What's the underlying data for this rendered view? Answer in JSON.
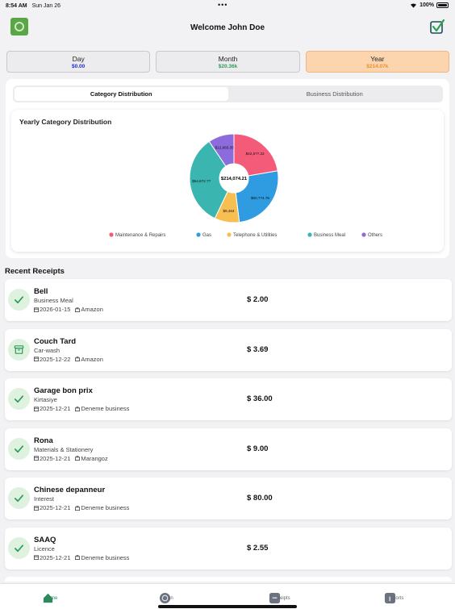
{
  "status": {
    "time": "8:54 AM",
    "date": "Sun Jan 26",
    "dots": "•••",
    "battery": "100%"
  },
  "header": {
    "title": "Welcome John Doe",
    "logo_icon": "app-logo-icon",
    "check_icon": "check-shield-icon"
  },
  "periods": [
    {
      "label": "Day",
      "value": "$0.00",
      "color": "#1c2ecb"
    },
    {
      "label": "Month",
      "value": "$20.36k",
      "color": "#2e9a5a"
    },
    {
      "label": "Year",
      "value": "$214.07k",
      "color": "#e8912d"
    }
  ],
  "active_period": "Year",
  "tabs": {
    "category": "Category Distribution",
    "business": "Business Distribution"
  },
  "chart_data": {
    "type": "pie",
    "title": "Yearly Category Distribution",
    "center_label": "$214,074.21",
    "donut": true,
    "slices": [
      {
        "name": "Maintenance & Repairs",
        "label": "$42,5??.22",
        "value": 52,
        "color": "#f45b78"
      },
      {
        "name": "Gas",
        "label": "$60,??4.76",
        "value": 60,
        "color": "#2f9be0"
      },
      {
        "name": "Telephone & Utilities",
        "label": "$9,464",
        "value": 21,
        "color": "#f7bf51"
      },
      {
        "name": "Business Meal",
        "label": "$54,872.??",
        "value": 78,
        "color": "#3bb5b0"
      },
      {
        "name": "Others",
        "label": "$12,665.35",
        "value": 22,
        "color": "#8c6bdc"
      }
    ],
    "legend_position": "bottom"
  },
  "recent": {
    "title": "Recent Receipts",
    "items": [
      {
        "name": "Bell",
        "category": "Business Meal",
        "date": "2026-01-15",
        "business": "Amazon",
        "amount": "$ 2.00",
        "status": "check-icon"
      },
      {
        "name": "Couch Tard",
        "category": "Car-wash",
        "date": "2025-12-22",
        "business": "Amazon",
        "amount": "$ 3.69",
        "status": "archive-icon"
      },
      {
        "name": "Garage bon prix",
        "category": "Kirtasiye",
        "date": "2025-12-21",
        "business": "Deneme business",
        "amount": "$ 36.00",
        "status": "check-icon"
      },
      {
        "name": "Rona",
        "category": "Materials & Stationery",
        "date": "2025-12-21",
        "business": "Marangoz",
        "amount": "$ 9.00",
        "status": "check-icon"
      },
      {
        "name": "Chinese depanneur",
        "category": "Interest",
        "date": "2025-12-21",
        "business": "Deneme business",
        "amount": "$ 80.00",
        "status": "check-icon"
      },
      {
        "name": "SAAQ",
        "category": "Licence",
        "date": "2025-12-21",
        "business": "Deneme business",
        "amount": "$ 2.55",
        "status": "check-icon"
      }
    ]
  },
  "tabbar": {
    "items": [
      {
        "label": "me",
        "icon": "home-icon"
      },
      {
        "label": "an",
        "icon": "scan-icon"
      },
      {
        "label": "ceipts",
        "icon": "receipts-icon"
      },
      {
        "label": "ports",
        "icon": "reports-icon"
      }
    ]
  }
}
